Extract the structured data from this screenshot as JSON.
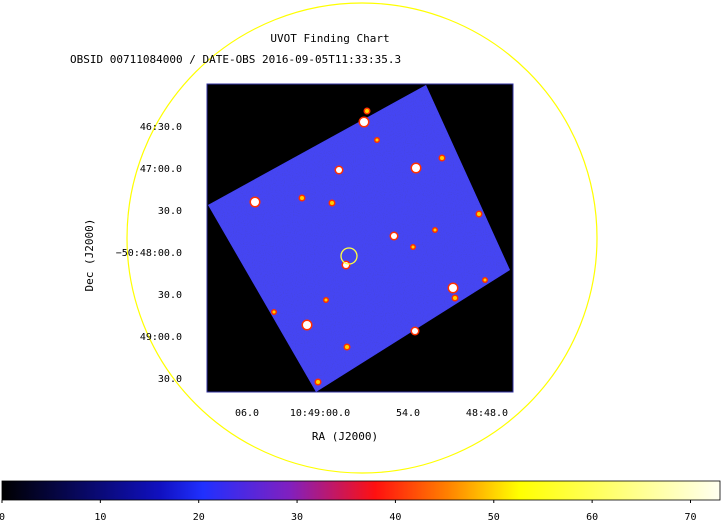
{
  "chart_data": [
    {
      "type": "image",
      "title": "UVOT Finding Chart",
      "subtitle": "OBSID 00711084000 / DATE-OBS 2016-09-05T11:33:35.3",
      "x_label": "RA (J2000)",
      "y_label": "Dec (J2000)",
      "x_tick_labels": [
        "06.0",
        "10:49:00.0",
        "54.0",
        "48:48.0"
      ],
      "y_tick_labels": [
        "46:30.0",
        "47:00.0",
        "30.0",
        "−50:48:00.0",
        "30.0",
        "49:00.0",
        "30.0"
      ]
    },
    {
      "type": "colorbar",
      "xlim": [
        0,
        73
      ],
      "xticks": [
        0,
        10,
        20,
        30,
        40,
        50,
        60,
        70
      ],
      "colors": [
        "#000000",
        "#1010c0",
        "#2030ff",
        "#8020c0",
        "#ff1010",
        "#ff8000",
        "#ffff00",
        "#fffff0"
      ]
    }
  ]
}
